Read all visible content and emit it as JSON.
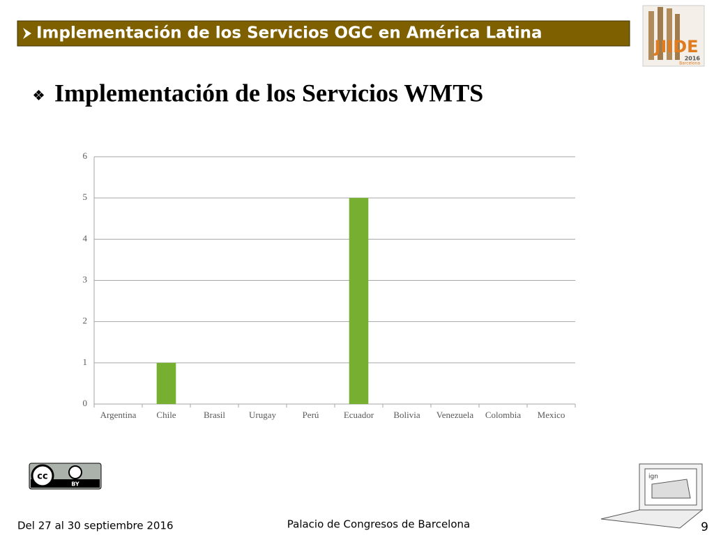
{
  "header": {
    "title": "Implementación de los Servicios OGC en América Latina"
  },
  "subtitle": "Implementación de los Servicios WMTS",
  "logo": {
    "name": "JIIDE",
    "year": "2016",
    "city": "Barcelona"
  },
  "license": {
    "cc": "cc",
    "by": "BY"
  },
  "laptop": {
    "label": "ign"
  },
  "footer": {
    "dates": "Del 27 al 30 septiembre 2016",
    "venue": "Palacio de Congresos de Barcelona",
    "page": "9"
  },
  "chart_data": {
    "type": "bar",
    "categories": [
      "Argentina",
      "Chile",
      "Brasil",
      "Urugay",
      "Perú",
      "Ecuador",
      "Bolivia",
      "Venezuela",
      "Colombia",
      "Mexico"
    ],
    "values": [
      0,
      1,
      0,
      0,
      0,
      5,
      0,
      0,
      0,
      0
    ],
    "color": "#77b031",
    "ylim": [
      0,
      6
    ],
    "yticks": [
      0,
      1,
      2,
      3,
      4,
      5,
      6
    ],
    "grid": true
  }
}
